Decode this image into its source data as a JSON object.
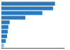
{
  "chart_data": {
    "type": "bar",
    "orientation": "horizontal",
    "categories": [
      null,
      null,
      null,
      null,
      null,
      null,
      null,
      null,
      null,
      null
    ],
    "values": [
      85,
      82,
      65,
      38,
      13,
      11,
      10,
      9,
      7,
      4
    ],
    "colors": [
      "#2979c2",
      "#2979c2",
      "#2979c2",
      "#2979c2",
      "#2979c2",
      "#2979c2",
      "#2979c2",
      "#2979c2",
      "#2979c2",
      "#90b8df"
    ],
    "xlim": [
      0,
      100
    ],
    "grid": false,
    "tick_labels": false,
    "data_labels": false
  }
}
